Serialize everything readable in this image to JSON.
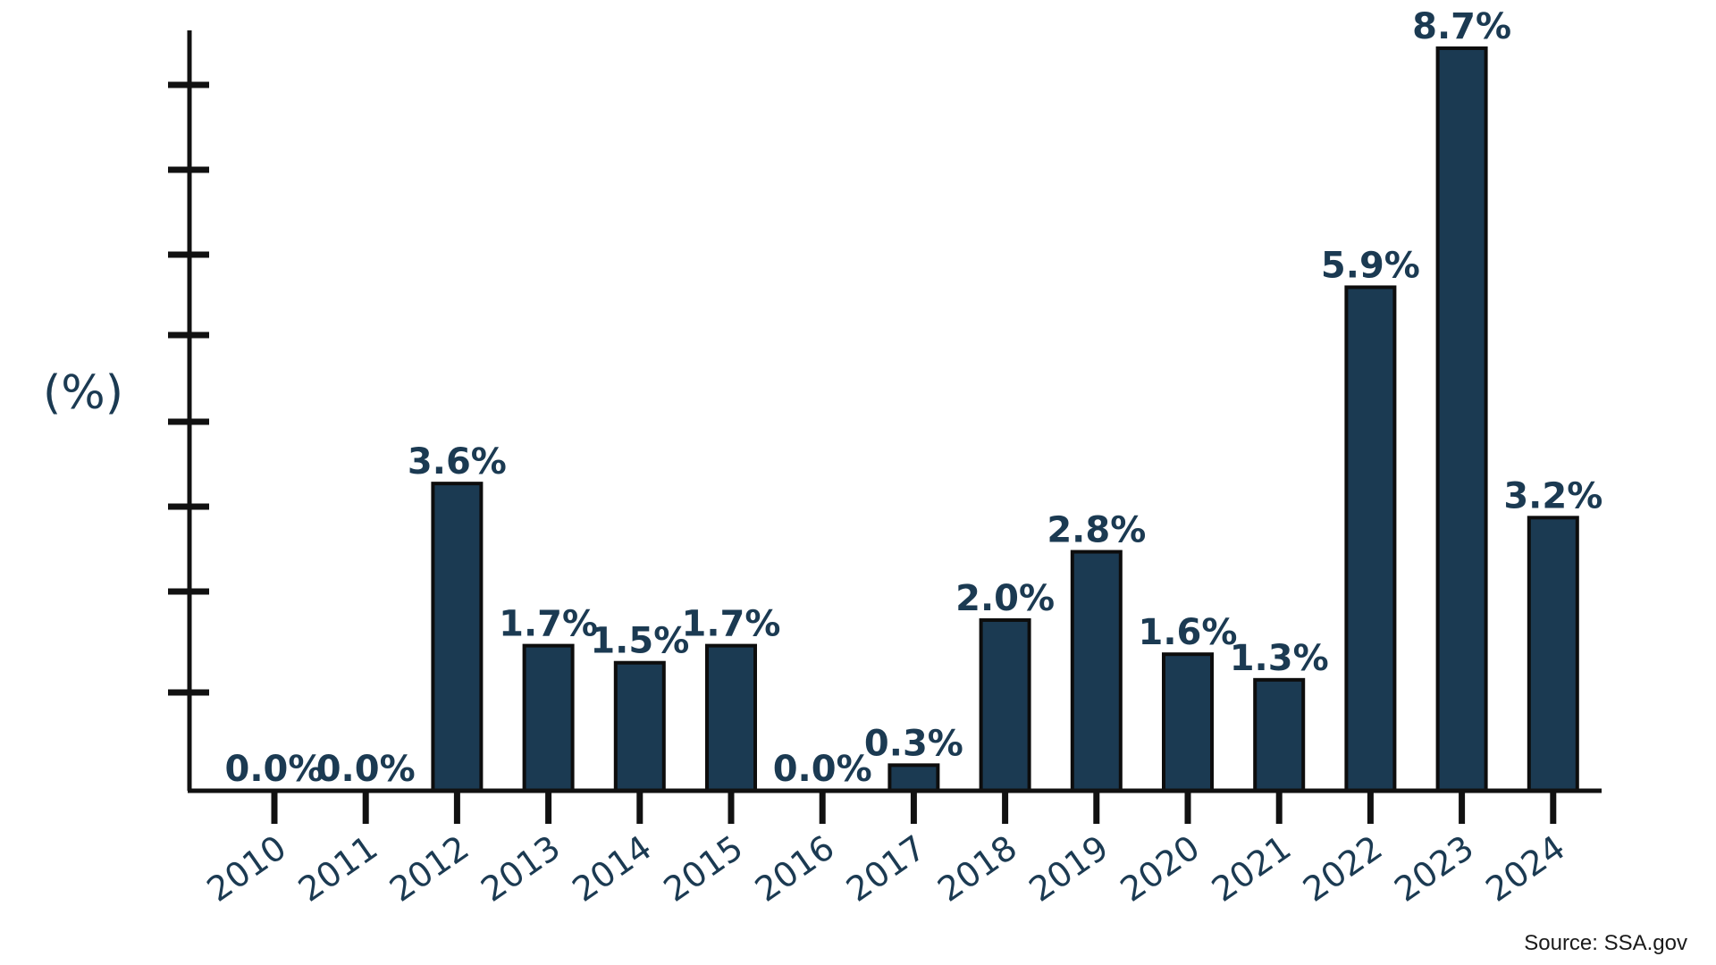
{
  "chart_data": {
    "type": "bar",
    "title": "",
    "xlabel": "",
    "ylabel": "(%)",
    "categories": [
      "2010",
      "2011",
      "2012",
      "2013",
      "2014",
      "2015",
      "2016",
      "2017",
      "2018",
      "2019",
      "2020",
      "2021",
      "2022",
      "2023",
      "2024"
    ],
    "values": [
      0.0,
      0.0,
      3.6,
      1.7,
      1.5,
      1.7,
      0.0,
      0.3,
      2.0,
      2.8,
      1.6,
      1.3,
      5.9,
      8.7,
      3.2
    ],
    "data_labels": [
      "0.0%",
      "0.0%",
      "3.6%",
      "1.7%",
      "1.5%",
      "1.7%",
      "0.0%",
      "0.3%",
      "2.0%",
      "2.8%",
      "1.6%",
      "1.3%",
      "5.9%",
      "8.7%",
      "3.2%"
    ],
    "ylim": [
      0,
      8.7
    ],
    "grid": false,
    "legend": "none",
    "bar_color": "#1b3a52",
    "text_color": "#1b3a52"
  },
  "source": "Source: SSA.gov"
}
